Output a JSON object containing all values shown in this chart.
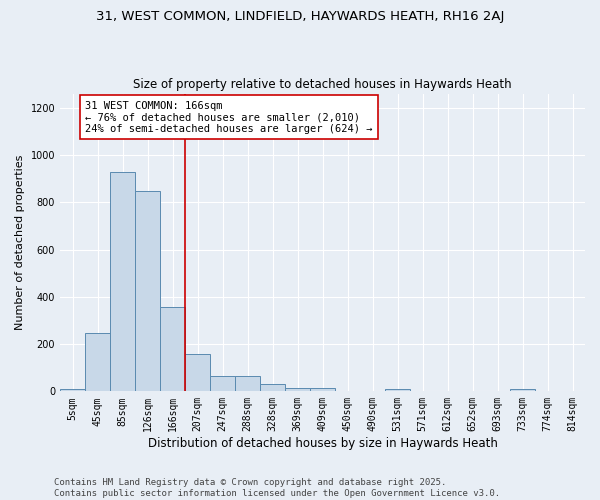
{
  "title1": "31, WEST COMMON, LINDFIELD, HAYWARDS HEATH, RH16 2AJ",
  "title2": "Size of property relative to detached houses in Haywards Heath",
  "xlabel": "Distribution of detached houses by size in Haywards Heath",
  "ylabel": "Number of detached properties",
  "categories": [
    "5sqm",
    "45sqm",
    "85sqm",
    "126sqm",
    "166sqm",
    "207sqm",
    "247sqm",
    "288sqm",
    "328sqm",
    "369sqm",
    "409sqm",
    "450sqm",
    "490sqm",
    "531sqm",
    "571sqm",
    "612sqm",
    "652sqm",
    "693sqm",
    "733sqm",
    "774sqm",
    "814sqm"
  ],
  "values": [
    8,
    248,
    930,
    848,
    358,
    157,
    65,
    63,
    30,
    13,
    13,
    0,
    0,
    10,
    0,
    0,
    0,
    0,
    10,
    0,
    0
  ],
  "bar_color": "#c8d8e8",
  "bar_edge_color": "#5a8ab0",
  "vline_index": 4,
  "vline_color": "#cc0000",
  "annotation_text": "31 WEST COMMON: 166sqm\n← 76% of detached houses are smaller (2,010)\n24% of semi-detached houses are larger (624) →",
  "annotation_box_color": "#ffffff",
  "annotation_box_edge": "#cc0000",
  "ylim": [
    0,
    1260
  ],
  "yticks": [
    0,
    200,
    400,
    600,
    800,
    1000,
    1200
  ],
  "background_color": "#e8eef5",
  "grid_color": "#ffffff",
  "footer": "Contains HM Land Registry data © Crown copyright and database right 2025.\nContains public sector information licensed under the Open Government Licence v3.0.",
  "title1_fontsize": 9.5,
  "title2_fontsize": 8.5,
  "xlabel_fontsize": 8.5,
  "ylabel_fontsize": 8,
  "tick_fontsize": 7,
  "annotation_fontsize": 7.5,
  "footer_fontsize": 6.5
}
